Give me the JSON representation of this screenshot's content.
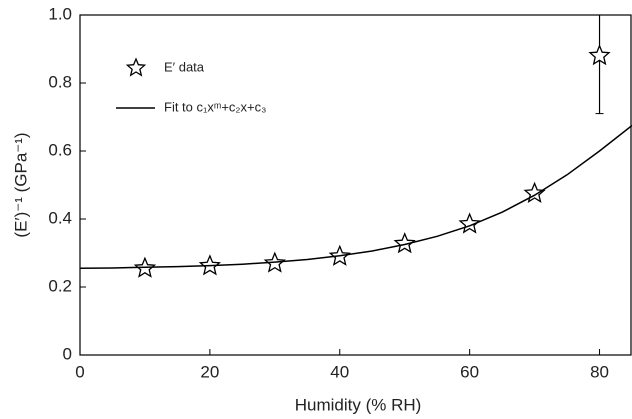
{
  "chart_data": {
    "type": "scatter",
    "xlabel": "Humidity (% RH)",
    "ylabel": "(E′)⁻¹ (GPa⁻¹)",
    "xlim": [
      0,
      85
    ],
    "ylim": [
      0,
      1
    ],
    "xticks": [
      0,
      20,
      40,
      60,
      80
    ],
    "yticks": [
      0,
      0.2,
      0.4,
      0.6,
      0.8,
      {
        "value": 1,
        "label": "1.0"
      }
    ],
    "legend": "top-left",
    "series": [
      {
        "name": "E′ data",
        "color": "#000000",
        "marker": "star",
        "x": [
          10,
          20,
          30,
          40,
          50,
          60,
          70,
          80
        ],
        "values": [
          0.255,
          0.262,
          0.27,
          0.29,
          0.327,
          0.385,
          0.475,
          0.88
        ],
        "errors": [
          null,
          null,
          null,
          null,
          null,
          null,
          null,
          0.17
        ]
      },
      {
        "name": "Fit to c₁xᵐ+c₂x+c₃",
        "color": "#000000",
        "marker": "line",
        "x": [
          0,
          5,
          10,
          15,
          20,
          25,
          30,
          35,
          40,
          45,
          50,
          55,
          60,
          65,
          70,
          75,
          80,
          85
        ],
        "values": [
          0.255,
          0.256,
          0.258,
          0.26,
          0.263,
          0.267,
          0.273,
          0.281,
          0.292,
          0.306,
          0.325,
          0.349,
          0.38,
          0.42,
          0.47,
          0.53,
          0.6,
          0.675
        ]
      }
    ]
  }
}
